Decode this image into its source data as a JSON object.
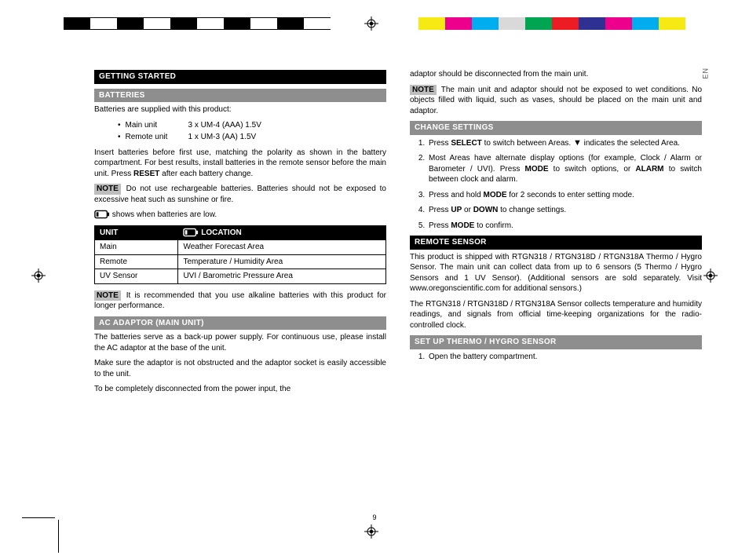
{
  "reg_colors_left": [
    "#000000",
    "#ffffff",
    "#000000",
    "#ffffff",
    "#000000",
    "#ffffff",
    "#000000",
    "#ffffff",
    "#000000",
    "#ffffff"
  ],
  "reg_colors_right": [
    "#f5ea14",
    "#ec008c",
    "#00adee",
    "#d9d9d9",
    "#00a551",
    "#ed1c24",
    "#2e3192",
    "#ec008c",
    "#00adee",
    "#f5ea14"
  ],
  "lang_tab": "EN",
  "page_number": "9",
  "left": {
    "h_getting_started": "GETTING STARTED",
    "h_batteries": "BATTERIES",
    "p_supplied": "Batteries are supplied with this product:",
    "batt_items": [
      {
        "label": "Main unit",
        "value": "3 x UM-4 (AAA) 1.5V"
      },
      {
        "label": "Remote unit",
        "value": "1 x UM-3 (AA) 1.5V"
      }
    ],
    "p_insert": "Insert batteries before first use, matching the polarity as shown in the battery compartment. For best results, install batteries in the remote sensor before the main unit. Press ",
    "p_insert_bold": "RESET",
    "p_insert_after": " after each battery change.",
    "note1_label": "NOTE",
    "note1_text": " Do not use rechargeable batteries. Batteries should not be exposed to excessive heat such as sunshine or fire.",
    "p_low": " shows when batteries are low.",
    "table": {
      "h_unit": "UNIT",
      "h_loc": "LOCATION",
      "rows": [
        [
          "Main",
          "Weather Forecast Area"
        ],
        [
          "Remote",
          "Temperature / Humidity Area"
        ],
        [
          "UV Sensor",
          "UVI / Barometric Pressure Area"
        ]
      ]
    },
    "note2_label": "NOTE",
    "note2_text": " It is recommended that you use alkaline batteries with this product for longer performance.",
    "h_adaptor": "AC ADAPTOR (MAIN UNIT)",
    "p_adaptor1": "The batteries serve as a back-up power supply. For continuous use, please install the AC adaptor at the base of the unit.",
    "p_adaptor2": "Make sure the adaptor is not obstructed and the adaptor socket is easily accessible to the unit.",
    "p_adaptor3": "To be completely disconnected from the power input, the"
  },
  "right": {
    "p_cont": "adaptor should be disconnected from the main unit.",
    "note3_label": "NOTE",
    "note3_text": " The main unit and adaptor should not be exposed to wet conditions. No objects filled with liquid, such as vases, should be placed on the main unit and adaptor.",
    "h_change": "CHANGE SETTINGS",
    "steps": [
      {
        "pre": "Press ",
        "b1": "SELECT",
        "mid": " to switch between Areas. ",
        "arrow": "▼",
        "post": " indicates the selected Area."
      },
      {
        "pre": "Most Areas have alternate display options (for example, Clock / Alarm or Barometer / UVI). Press ",
        "b1": "MODE",
        "mid": " to switch options, or ",
        "b2": "ALARM",
        "post": " to switch between clock and alarm."
      },
      {
        "pre": "Press and hold ",
        "b1": "MODE",
        "post": " for 2 seconds to enter setting mode."
      },
      {
        "pre": "Press ",
        "b1": "UP",
        "mid": " or ",
        "b2": "DOWN",
        "post": " to change settings."
      },
      {
        "pre": "Press ",
        "b1": "MODE",
        "post": " to confirm."
      }
    ],
    "h_remote": "REMOTE SENSOR",
    "p_remote1": "This product is shipped with RTGN318 / RTGN318D / RTGN318A Thermo / Hygro Sensor. The main unit can collect data from up to 6 sensors (5 Thermo / Hygro Sensors and 1 UV Sensor).  (Additional sensors are sold separately. Visit www.oregonscientific.com for additional sensors.)",
    "p_remote2": "The RTGN318 / RTGN318D / RTGN318A Sensor collects temperature and humidity readings, and signals from official time-keeping organizations for the radio-controlled clock.",
    "h_setup": "SET UP THERMO / HYGRO SENSOR",
    "setup_step1": "Open the battery compartment."
  }
}
